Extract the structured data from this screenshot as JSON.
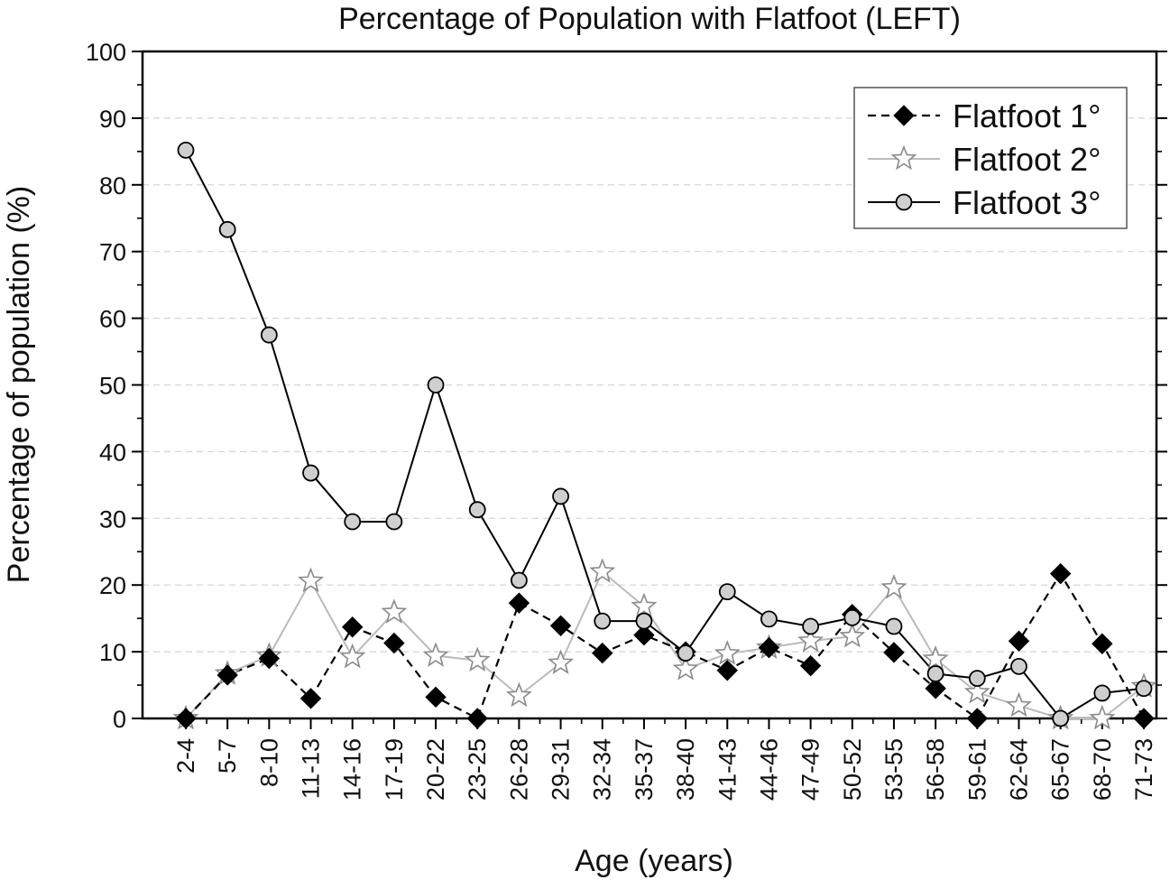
{
  "chart_data": {
    "type": "line",
    "title": "Percentage of Population with Flatfoot (LEFT)",
    "xlabel": "Age (years)",
    "ylabel": "Percentage of population (%)",
    "ylim": [
      0,
      100
    ],
    "yticks": [
      0,
      10,
      20,
      30,
      40,
      50,
      60,
      70,
      80,
      90,
      100
    ],
    "grid": "horizontal dashed",
    "legend_position": "top-right",
    "categories": [
      "2-4",
      "5-7",
      "8-10",
      "11-13",
      "14-16",
      "17-19",
      "20-22",
      "23-25",
      "26-28",
      "29-31",
      "32-34",
      "35-37",
      "38-40",
      "41-43",
      "44-46",
      "47-49",
      "50-52",
      "53-55",
      "56-58",
      "59-61",
      "62-64",
      "65-67",
      "68-70",
      "71-73"
    ],
    "series": [
      {
        "name": "Flatfoot 1°",
        "style": "dashed",
        "marker": "diamond",
        "color": "#000000",
        "values": [
          0,
          6.5,
          9,
          3,
          13.7,
          11.3,
          3.2,
          0,
          17.3,
          13.9,
          9.8,
          12.5,
          10,
          7.2,
          10.6,
          7.9,
          15.6,
          9.9,
          4.5,
          0,
          11.6,
          21.7,
          11.2,
          0
        ]
      },
      {
        "name": "Flatfoot 2°",
        "style": "solid",
        "marker": "star",
        "color": "#bbbbbb",
        "values": [
          0,
          6.7,
          9.4,
          20.6,
          9.2,
          15.9,
          9.4,
          8.7,
          3.4,
          8.3,
          22,
          16.8,
          7.4,
          9.7,
          10.6,
          11.6,
          12.3,
          19.6,
          8.9,
          3.9,
          1.9,
          0,
          0,
          4.8
        ]
      },
      {
        "name": "Flatfoot 3°",
        "style": "solid",
        "marker": "circle",
        "color": "#000000",
        "values": [
          85.2,
          73.3,
          57.5,
          36.8,
          29.5,
          29.5,
          50,
          31.3,
          20.7,
          33.3,
          14.6,
          14.6,
          9.8,
          19,
          14.9,
          13.8,
          15.1,
          13.8,
          6.7,
          6,
          7.8,
          0,
          3.8,
          4.5
        ]
      }
    ]
  }
}
